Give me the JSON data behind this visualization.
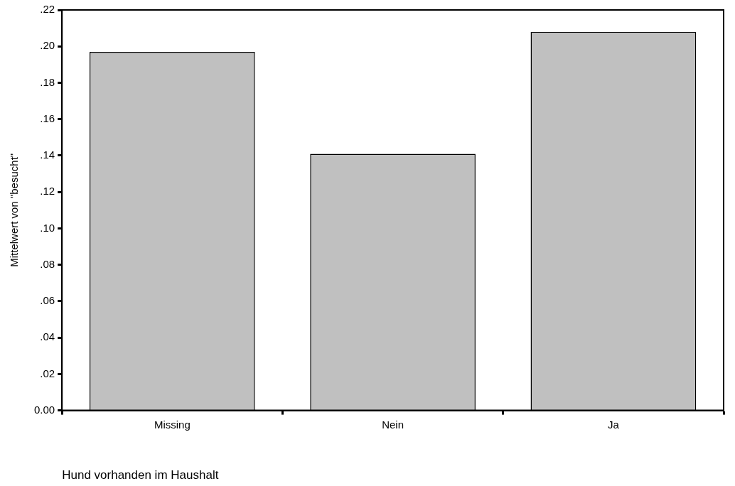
{
  "chart_data": {
    "type": "bar",
    "xlabel": "Hund vorhanden im Haushalt",
    "ylabel": "Mittelwert von \"besucht\"",
    "categories": [
      "Missing",
      "Nein",
      "Ja"
    ],
    "values": [
      0.197,
      0.141,
      0.208
    ],
    "color": "#c0c0c0",
    "ylim": [
      0,
      0.22
    ],
    "yticks": [
      {
        "value": 0,
        "label": "0.00"
      },
      {
        "value": 0.02,
        "label": ".02"
      },
      {
        "value": 0.04,
        "label": ".04"
      },
      {
        "value": 0.06,
        "label": ".06"
      },
      {
        "value": 0.08,
        "label": ".08"
      },
      {
        "value": 0.1,
        "label": ".10"
      },
      {
        "value": 0.12,
        "label": ".12"
      },
      {
        "value": 0.14,
        "label": ".14"
      },
      {
        "value": 0.16,
        "label": ".16"
      },
      {
        "value": 0.18,
        "label": ".18"
      },
      {
        "value": 0.2,
        "label": ".20"
      },
      {
        "value": 0.22,
        "label": ".22"
      }
    ],
    "grid": false,
    "legend": false
  }
}
